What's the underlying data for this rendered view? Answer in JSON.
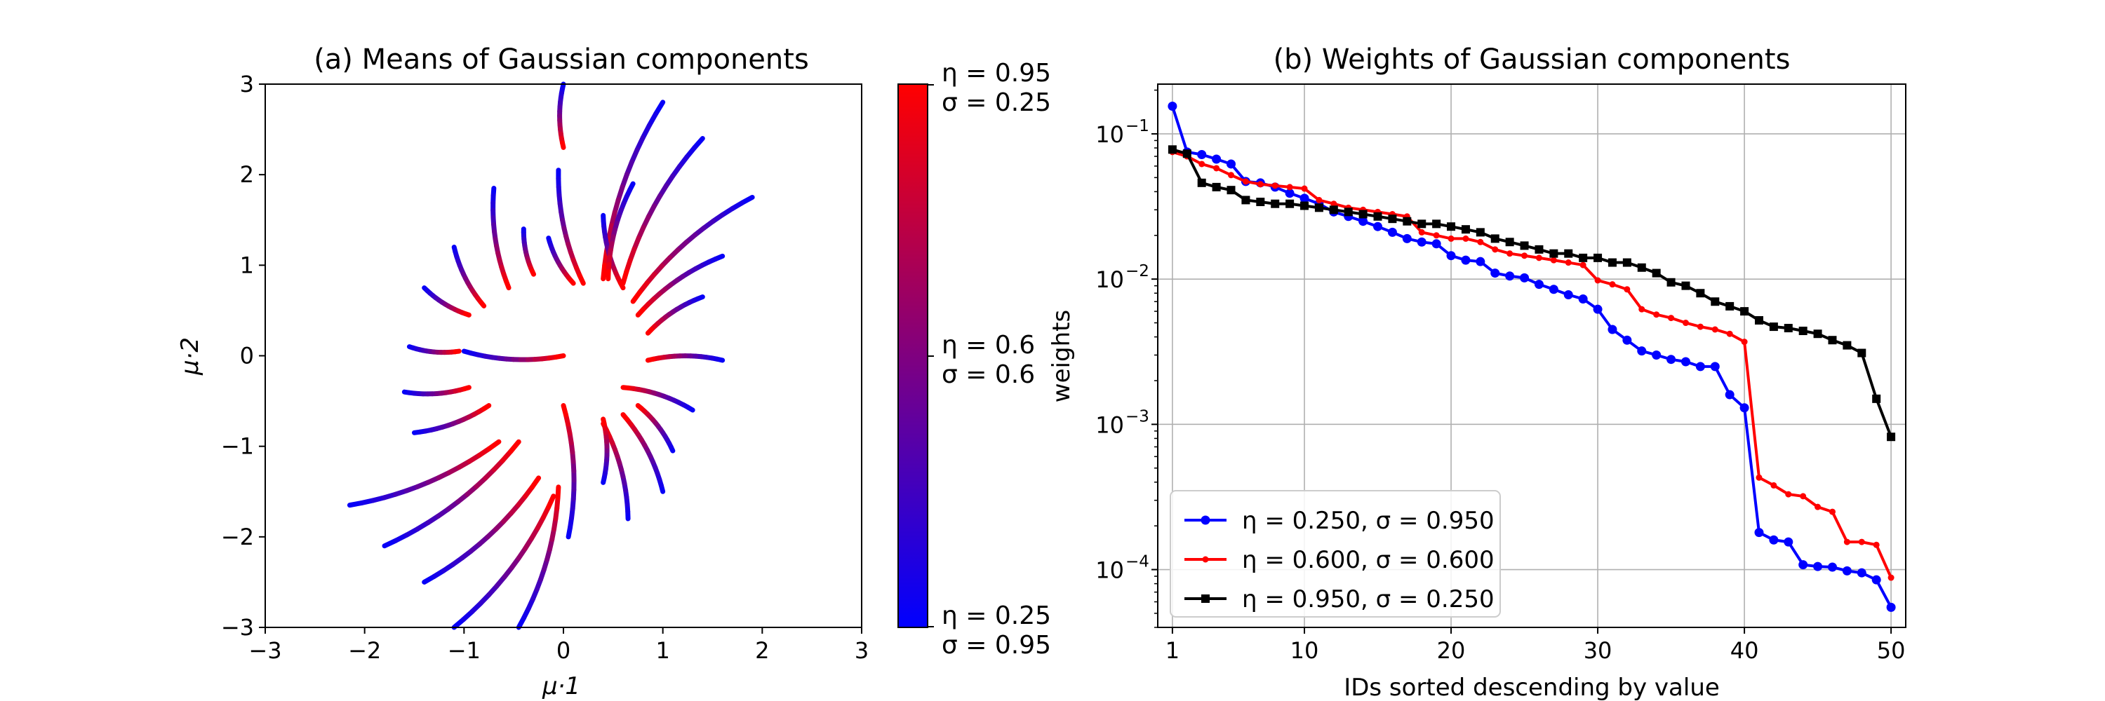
{
  "chart_data": [
    {
      "type": "line",
      "title": "(a) Means of Gaussian components",
      "xlabel": "μ·1",
      "ylabel": "μ·2",
      "xlim": [
        -3,
        3
      ],
      "ylim": [
        -3,
        3
      ],
      "xticks": [
        "−3",
        "−2",
        "−1",
        "0",
        "1",
        "2",
        "3"
      ],
      "yticks": [
        "−3",
        "−2",
        "−1",
        "0",
        "1",
        "2",
        "3"
      ],
      "colormap": [
        "#0000ff",
        "#ff0000"
      ],
      "colorbar": {
        "top": [
          "η = 0.95",
          "σ = 0.25"
        ],
        "middle": [
          "η = 0.6",
          "σ = 0.6"
        ],
        "bottom": [
          "η = 0.25",
          "σ = 0.95"
        ]
      },
      "trajectories": [
        {
          "start": [
            1.0,
            2.8
          ],
          "end": [
            0.4,
            0.85
          ]
        },
        {
          "start": [
            1.4,
            2.4
          ],
          "end": [
            0.6,
            0.8
          ]
        },
        {
          "start": [
            1.9,
            1.75
          ],
          "end": [
            0.7,
            0.6
          ]
        },
        {
          "start": [
            1.6,
            1.1
          ],
          "end": [
            0.75,
            0.45
          ]
        },
        {
          "start": [
            1.4,
            0.65
          ],
          "end": [
            0.85,
            0.25
          ]
        },
        {
          "start": [
            1.6,
            -0.05
          ],
          "end": [
            0.85,
            -0.05
          ]
        },
        {
          "start": [
            1.3,
            -0.6
          ],
          "end": [
            0.6,
            -0.35
          ]
        },
        {
          "start": [
            1.1,
            -1.05
          ],
          "end": [
            0.75,
            -0.55
          ]
        },
        {
          "start": [
            1.0,
            -1.5
          ],
          "end": [
            0.6,
            -0.65
          ]
        },
        {
          "start": [
            0.65,
            -1.8
          ],
          "end": [
            0.4,
            -0.75
          ]
        },
        {
          "start": [
            0.4,
            -1.4
          ],
          "end": [
            0.4,
            -0.7
          ]
        },
        {
          "start": [
            0.05,
            -2.0
          ],
          "end": [
            0.0,
            -0.55
          ]
        },
        {
          "start": [
            -0.45,
            -3.0
          ],
          "end": [
            -0.05,
            -1.45
          ]
        },
        {
          "start": [
            -1.1,
            -3.0
          ],
          "end": [
            -0.1,
            -1.55
          ]
        },
        {
          "start": [
            -1.4,
            -2.5
          ],
          "end": [
            -0.25,
            -1.35
          ]
        },
        {
          "start": [
            -1.8,
            -2.1
          ],
          "end": [
            -0.45,
            -0.95
          ]
        },
        {
          "start": [
            -2.15,
            -1.65
          ],
          "end": [
            -0.65,
            -0.95
          ]
        },
        {
          "start": [
            -1.5,
            -0.85
          ],
          "end": [
            -0.75,
            -0.55
          ]
        },
        {
          "start": [
            -1.6,
            -0.4
          ],
          "end": [
            -0.95,
            -0.35
          ]
        },
        {
          "start": [
            -1.55,
            0.1
          ],
          "end": [
            -1.05,
            0.05
          ]
        },
        {
          "start": [
            -1.4,
            0.75
          ],
          "end": [
            -0.95,
            0.45
          ]
        },
        {
          "start": [
            -1.1,
            1.2
          ],
          "end": [
            -0.8,
            0.55
          ]
        },
        {
          "start": [
            -0.7,
            1.85
          ],
          "end": [
            -0.55,
            0.75
          ]
        },
        {
          "start": [
            -0.4,
            1.4
          ],
          "end": [
            -0.3,
            0.9
          ]
        },
        {
          "start": [
            -0.05,
            2.05
          ],
          "end": [
            0.2,
            0.8
          ]
        },
        {
          "start": [
            0.4,
            1.55
          ],
          "end": [
            0.6,
            0.75
          ]
        },
        {
          "start": [
            0.7,
            1.9
          ],
          "end": [
            0.45,
            0.85
          ]
        },
        {
          "start": [
            -0.15,
            1.3
          ],
          "end": [
            0.1,
            0.8
          ]
        },
        {
          "start": [
            0.0,
            3.0
          ],
          "end": [
            0.0,
            2.3
          ]
        },
        {
          "start": [
            -1.0,
            0.05
          ],
          "end": [
            0.0,
            0.0
          ]
        }
      ]
    },
    {
      "type": "line",
      "title": "(b) Weights of Gaussian components",
      "xlabel": "IDs sorted descending by value",
      "ylabel": "weights",
      "xlim": [
        0,
        51
      ],
      "ylim": [
        4e-05,
        0.22
      ],
      "yscale": "log",
      "xticks": [
        1,
        10,
        20,
        30,
        40,
        50
      ],
      "ytick_labels": [
        "10",
        "10",
        "10",
        "10"
      ],
      "ytick_exps": [
        "−1",
        "−2",
        "−3",
        "−4"
      ],
      "ytick_values": [
        0.1,
        0.01,
        0.001,
        0.0001
      ],
      "grid": true,
      "legend_position": "lower-left",
      "x": [
        1,
        2,
        3,
        4,
        5,
        6,
        7,
        8,
        9,
        10,
        11,
        12,
        13,
        14,
        15,
        16,
        17,
        18,
        19,
        20,
        21,
        22,
        23,
        24,
        25,
        26,
        27,
        28,
        29,
        30,
        31,
        32,
        33,
        34,
        35,
        36,
        37,
        38,
        39,
        40,
        41,
        42,
        43,
        44,
        45,
        46,
        47,
        48,
        49,
        50
      ],
      "series": [
        {
          "name": "η = 0.250, σ = 0.950",
          "color": "#0000ff",
          "marker": "circle",
          "values": [
            0.155,
            0.075,
            0.072,
            0.067,
            0.062,
            0.047,
            0.046,
            0.043,
            0.039,
            0.036,
            0.033,
            0.029,
            0.027,
            0.025,
            0.023,
            0.021,
            0.019,
            0.018,
            0.0175,
            0.0145,
            0.0135,
            0.0132,
            0.011,
            0.0105,
            0.0102,
            0.0092,
            0.0085,
            0.0078,
            0.0073,
            0.0062,
            0.0045,
            0.0038,
            0.0032,
            0.003,
            0.0028,
            0.0027,
            0.0025,
            0.0025,
            0.0016,
            0.0013,
            0.00018,
            0.00016,
            0.000155,
            0.000108,
            0.000105,
            0.000104,
            9.8e-05,
            9.5e-05,
            8.5e-05,
            5.5e-05
          ]
        },
        {
          "name": "η = 0.600, σ = 0.600",
          "color": "#ff0000",
          "marker": "small-circle",
          "values": [
            0.075,
            0.07,
            0.062,
            0.058,
            0.052,
            0.047,
            0.045,
            0.044,
            0.043,
            0.042,
            0.035,
            0.033,
            0.031,
            0.03,
            0.029,
            0.028,
            0.027,
            0.021,
            0.02,
            0.019,
            0.019,
            0.018,
            0.016,
            0.015,
            0.0145,
            0.014,
            0.0135,
            0.013,
            0.0125,
            0.0098,
            0.0092,
            0.0085,
            0.0062,
            0.0057,
            0.0054,
            0.005,
            0.0047,
            0.0045,
            0.0042,
            0.0037,
            0.00043,
            0.00038,
            0.00033,
            0.00032,
            0.00027,
            0.00025,
            0.000155,
            0.000155,
            0.000148,
            8.8e-05
          ]
        },
        {
          "name": "η = 0.950, σ = 0.250",
          "color": "#000000",
          "marker": "square",
          "values": [
            0.078,
            0.073,
            0.046,
            0.043,
            0.041,
            0.035,
            0.034,
            0.033,
            0.033,
            0.032,
            0.031,
            0.03,
            0.029,
            0.028,
            0.027,
            0.026,
            0.025,
            0.024,
            0.024,
            0.023,
            0.022,
            0.021,
            0.019,
            0.018,
            0.017,
            0.016,
            0.015,
            0.015,
            0.014,
            0.014,
            0.013,
            0.013,
            0.012,
            0.011,
            0.0095,
            0.009,
            0.008,
            0.007,
            0.0065,
            0.006,
            0.0052,
            0.0047,
            0.0046,
            0.0044,
            0.0042,
            0.0038,
            0.0035,
            0.0031,
            0.0015,
            0.00082
          ]
        }
      ]
    }
  ]
}
